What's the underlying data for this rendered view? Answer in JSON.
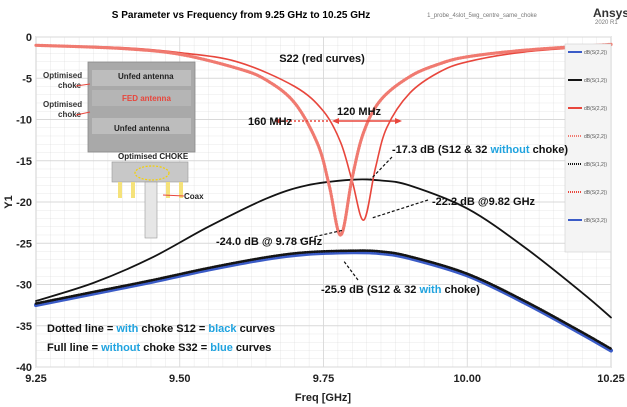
{
  "colors": {
    "red": "#e8463c",
    "red_light": "#f07a70",
    "black": "#141414",
    "blue": "#3a5bc7",
    "cyan": "#1fa3df",
    "grid": "#d9d9d9"
  },
  "header": {
    "title": "S Parameter vs Frequency from 9.25 GHz to 10.25 GHz",
    "file_label": "1_probe_4slot_5wg_centre_same_choke",
    "brand": "Ansys",
    "brand_sub": "2020 R1"
  },
  "chart_data": {
    "type": "line",
    "title": "S Parameter vs Frequency from 9.25 GHz to 10.25 GHz",
    "xlabel": "Freq [GHz]",
    "ylabel": "Y1",
    "xlim": [
      9.25,
      10.25
    ],
    "ylim": [
      -40,
      0
    ],
    "xticks": [
      "9.25",
      "9.50",
      "9.75",
      "10.00",
      "10.25"
    ],
    "xtick_values": [
      9.25,
      9.5,
      9.75,
      10.0,
      10.25
    ],
    "yticks": [
      "0",
      "-5",
      "-10",
      "-15",
      "-20",
      "-25",
      "-30",
      "-35",
      "-40"
    ],
    "ytick_values": [
      0,
      -5,
      -10,
      -15,
      -20,
      -25,
      -30,
      -35,
      -40
    ],
    "grid": true,
    "legend_position": "right",
    "legend_labels": [
      "dB(S(2,2))",
      "dB(S(1,2))",
      "dB(S(2,2))",
      "dB(S(2,2))",
      "dB(S(1,2))",
      "dB(S(2,2))",
      "dB(S(3,2))"
    ],
    "series": [
      {
        "style": "solid-red",
        "x": [
          9.25,
          9.4,
          9.5,
          9.6,
          9.7,
          9.75,
          9.78,
          9.8,
          9.82,
          9.84,
          9.86,
          9.9,
          9.95,
          10.0,
          10.1,
          10.25
        ],
        "y": [
          -1.0,
          -1.3,
          -1.9,
          -3.0,
          -6.0,
          -9.0,
          -12.8,
          -17.5,
          -22.2,
          -16.0,
          -11.0,
          -6.8,
          -4.3,
          -3.0,
          -1.8,
          -1.0
        ]
      },
      {
        "style": "dotted-red",
        "x": [
          9.25,
          9.4,
          9.5,
          9.6,
          9.65,
          9.7,
          9.74,
          9.76,
          9.78,
          9.8,
          9.82,
          9.85,
          9.9,
          9.95,
          10.0,
          10.1,
          10.25
        ],
        "y": [
          -1.0,
          -1.4,
          -2.1,
          -3.8,
          -5.2,
          -8.0,
          -13.0,
          -18.0,
          -24.0,
          -17.0,
          -11.5,
          -7.6,
          -4.8,
          -3.3,
          -2.4,
          -1.6,
          -0.9
        ]
      },
      {
        "style": "solid-black",
        "x": [
          9.25,
          9.35,
          9.45,
          9.55,
          9.65,
          9.72,
          9.8,
          9.85,
          9.9,
          10.0,
          10.1,
          10.2,
          10.25
        ],
        "y": [
          -32.0,
          -29.8,
          -26.8,
          -23.0,
          -19.6,
          -18.0,
          -17.3,
          -17.4,
          -18.0,
          -20.8,
          -25.5,
          -31.0,
          -34.0
        ]
      },
      {
        "style": "dotted-black",
        "x": [
          9.25,
          9.35,
          9.45,
          9.55,
          9.65,
          9.72,
          9.8,
          9.85,
          9.9,
          10.0,
          10.1,
          10.2,
          10.25
        ],
        "y": [
          -32.3,
          -30.9,
          -29.5,
          -28.0,
          -26.7,
          -26.1,
          -25.9,
          -26.0,
          -26.6,
          -28.7,
          -32.0,
          -35.8,
          -37.8
        ]
      },
      {
        "style": "solid-blue",
        "x": [
          9.25,
          9.35,
          9.45,
          9.55,
          9.65,
          9.72,
          9.8,
          9.85,
          9.9,
          10.0,
          10.1,
          10.2,
          10.25
        ],
        "y": [
          -32.5,
          -31.1,
          -29.7,
          -28.2,
          -26.9,
          -26.3,
          -26.1,
          -26.2,
          -26.8,
          -28.9,
          -32.2,
          -36.0,
          -38.0
        ]
      }
    ],
    "annotations": {
      "s22_label": "S22 (red curves)",
      "bw_120": "120 MHz",
      "bw_160": "160 MHz",
      "a_173": "-17.3 dB (S12 & 32 ",
      "a_173_word": "without",
      "a_173_end": " choke)",
      "a_222": "-22.2 dB @9.82 GHz",
      "a_240": "-24.0 dB @ 9.78 GHz",
      "a_259": "-25.9 dB (S12 & 32 ",
      "a_259_word": "with",
      "a_259_end": " choke)"
    },
    "notes": {
      "line1_a": "Dotted line = ",
      "line1_b": "with",
      "line1_c": " choke  S12 = ",
      "line1_d": "black",
      "line1_e": " curves",
      "line2_a": "Full line = ",
      "line2_b": "without",
      "line2_c": " choke S32 = ",
      "line2_d": "blue",
      "line2_e": " curves"
    }
  },
  "inset": {
    "labels": [
      "Unfed antenna",
      "FED antenna",
      "Unfed antenna",
      "Optimised CHOKE",
      "Coax"
    ],
    "side_labels": [
      "Optimised",
      "choke",
      "Optimised",
      "choke"
    ]
  }
}
